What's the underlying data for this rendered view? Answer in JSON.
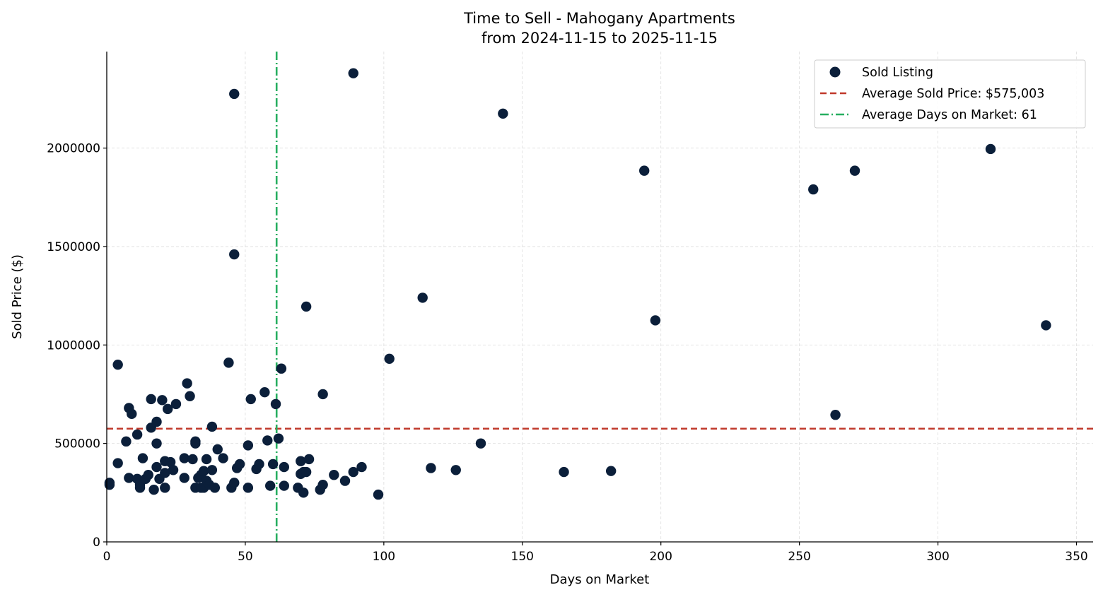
{
  "chart_data": {
    "type": "scatter",
    "title": "Time to Sell - Mahogany Apartments",
    "subtitle": "from 2024-11-15 to 2025-11-15",
    "xlabel": "Days on Market",
    "ylabel": "Sold Price ($)",
    "xlim": [
      0,
      356
    ],
    "ylim": [
      0,
      2490000
    ],
    "xticks": [
      0,
      50,
      100,
      150,
      200,
      250,
      300,
      350
    ],
    "xtick_labels": [
      "0",
      "50",
      "100",
      "150",
      "200",
      "250",
      "300",
      "350"
    ],
    "yticks": [
      0,
      500000,
      1000000,
      1500000,
      2000000
    ],
    "ytick_labels": [
      "0",
      "500000",
      "1000000",
      "1500000",
      "2000000"
    ],
    "grid": true,
    "legend_position": "top-right",
    "colors": {
      "points": "#0b1f3a",
      "avg_price": "#c0392b",
      "avg_days": "#27ae60",
      "grid": "#dddddd"
    },
    "series": [
      {
        "name": "Sold Listing",
        "points": [
          [
            1,
            300000
          ],
          [
            1,
            290000
          ],
          [
            4,
            900000
          ],
          [
            4,
            400000
          ],
          [
            7,
            510000
          ],
          [
            8,
            680000
          ],
          [
            8,
            325000
          ],
          [
            9,
            650000
          ],
          [
            11,
            545000
          ],
          [
            11,
            320000
          ],
          [
            12,
            290000
          ],
          [
            12,
            275000
          ],
          [
            13,
            425000
          ],
          [
            14,
            320000
          ],
          [
            15,
            340000
          ],
          [
            16,
            580000
          ],
          [
            16,
            725000
          ],
          [
            17,
            265000
          ],
          [
            18,
            610000
          ],
          [
            18,
            500000
          ],
          [
            18,
            380000
          ],
          [
            19,
            320000
          ],
          [
            20,
            720000
          ],
          [
            21,
            410000
          ],
          [
            21,
            350000
          ],
          [
            21,
            275000
          ],
          [
            22,
            675000
          ],
          [
            23,
            405000
          ],
          [
            24,
            365000
          ],
          [
            25,
            700000
          ],
          [
            28,
            425000
          ],
          [
            28,
            325000
          ],
          [
            29,
            805000
          ],
          [
            30,
            740000
          ],
          [
            31,
            420000
          ],
          [
            32,
            510000
          ],
          [
            32,
            500000
          ],
          [
            32,
            275000
          ],
          [
            33,
            325000
          ],
          [
            34,
            275000
          ],
          [
            34,
            340000
          ],
          [
            35,
            360000
          ],
          [
            35,
            275000
          ],
          [
            36,
            420000
          ],
          [
            36,
            310000
          ],
          [
            37,
            290000
          ],
          [
            38,
            585000
          ],
          [
            38,
            365000
          ],
          [
            39,
            275000
          ],
          [
            40,
            470000
          ],
          [
            42,
            425000
          ],
          [
            44,
            910000
          ],
          [
            45,
            275000
          ],
          [
            46,
            2275000
          ],
          [
            46,
            1460000
          ],
          [
            46,
            300000
          ],
          [
            47,
            375000
          ],
          [
            48,
            395000
          ],
          [
            51,
            490000
          ],
          [
            51,
            275000
          ],
          [
            52,
            725000
          ],
          [
            54,
            370000
          ],
          [
            55,
            395000
          ],
          [
            57,
            760000
          ],
          [
            58,
            515000
          ],
          [
            59,
            285000
          ],
          [
            60,
            395000
          ],
          [
            61,
            700000
          ],
          [
            62,
            525000
          ],
          [
            63,
            880000
          ],
          [
            64,
            380000
          ],
          [
            64,
            285000
          ],
          [
            69,
            275000
          ],
          [
            70,
            410000
          ],
          [
            70,
            345000
          ],
          [
            71,
            355000
          ],
          [
            71,
            250000
          ],
          [
            72,
            1195000
          ],
          [
            72,
            355000
          ],
          [
            73,
            420000
          ],
          [
            77,
            265000
          ],
          [
            78,
            290000
          ],
          [
            78,
            750000
          ],
          [
            82,
            340000
          ],
          [
            86,
            310000
          ],
          [
            89,
            355000
          ],
          [
            89,
            2380000
          ],
          [
            92,
            380000
          ],
          [
            98,
            240000
          ],
          [
            102,
            930000
          ],
          [
            114,
            1240000
          ],
          [
            117,
            375000
          ],
          [
            126,
            365000
          ],
          [
            135,
            500000
          ],
          [
            143,
            2175000
          ],
          [
            165,
            355000
          ],
          [
            182,
            360000
          ],
          [
            194,
            1885000
          ],
          [
            198,
            1125000
          ],
          [
            255,
            1790000
          ],
          [
            263,
            645000
          ],
          [
            270,
            1885000
          ],
          [
            319,
            1995000
          ],
          [
            339,
            1100000
          ]
        ]
      }
    ],
    "reference_lines": [
      {
        "name": "Average Sold Price: $575,003",
        "orientation": "horizontal",
        "value": 575003,
        "style": "dashed"
      },
      {
        "name": "Average Days on Market: 61",
        "orientation": "vertical",
        "value": 61.3,
        "style": "dashdot"
      }
    ],
    "legend": [
      "Sold Listing",
      "Average Sold Price: $575,003",
      "Average Days on Market: 61"
    ]
  }
}
